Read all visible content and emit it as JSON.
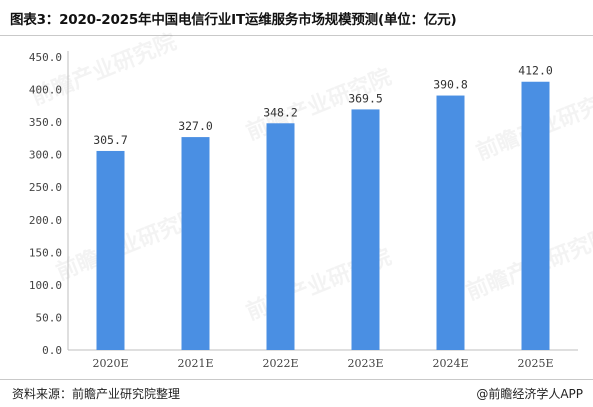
{
  "header": {
    "title": "图表3：2020-2025年中国电信行业IT运维服务市场规模预测(单位：亿元)"
  },
  "footer": {
    "source": "资料来源：前瞻产业研究院整理",
    "brand": "@前瞻经济学人APP"
  },
  "watermark": {
    "text": "前瞻产业研究院"
  },
  "chart_data": {
    "type": "bar",
    "categories": [
      "2020E",
      "2021E",
      "2022E",
      "2023E",
      "2024E",
      "2025E"
    ],
    "values": [
      305.7,
      327.0,
      348.2,
      369.5,
      390.8,
      412.0
    ],
    "value_labels": [
      "305.7",
      "327.0",
      "348.2",
      "369.5",
      "390.8",
      "412.0"
    ],
    "yticks": [
      "0.0",
      "50.0",
      "100.0",
      "150.0",
      "200.0",
      "250.0",
      "300.0",
      "350.0",
      "400.0",
      "450.0"
    ],
    "ylim": [
      0,
      450
    ],
    "bar_color": "#4a8fe3",
    "grid": false,
    "legend": "none"
  }
}
